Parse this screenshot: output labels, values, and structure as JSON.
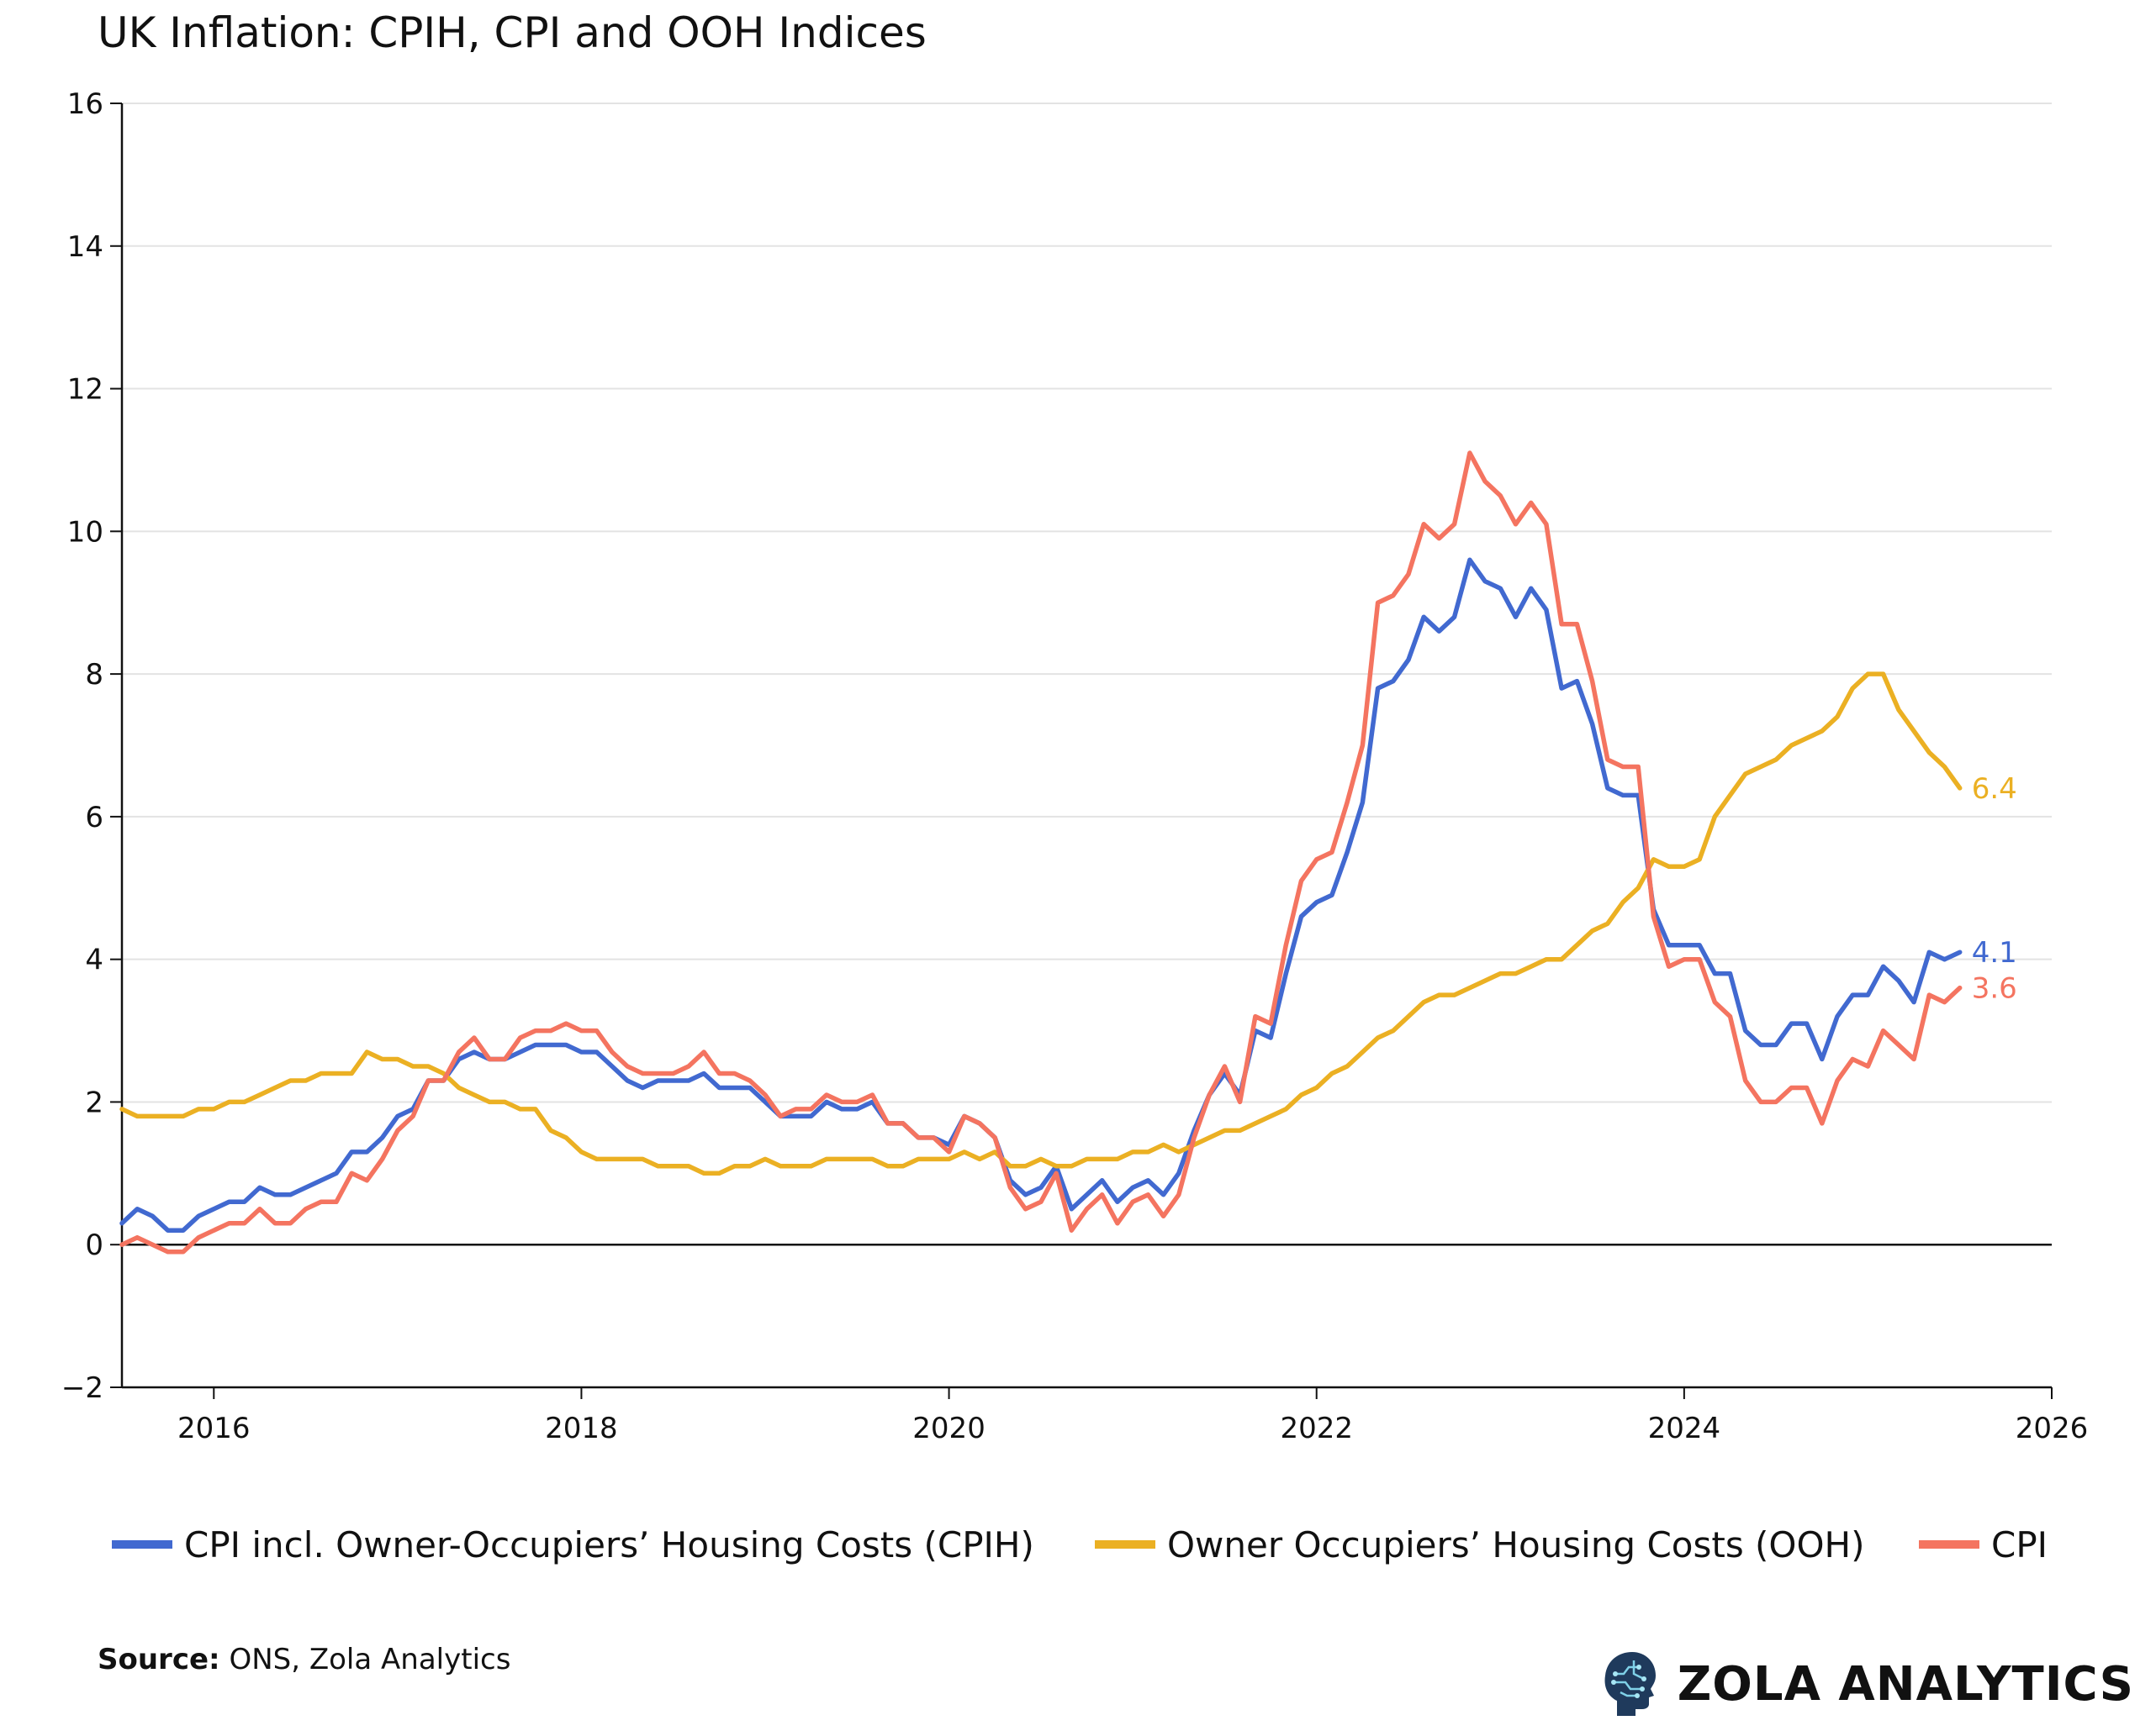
{
  "chart_data": {
    "type": "line",
    "title": "UK Inflation: CPIH, CPI and OOH Indices",
    "xlabel": "",
    "ylabel": "",
    "xlim": [
      2015.5,
      2026
    ],
    "ylim": [
      -2,
      16
    ],
    "x_ticks": [
      "2016",
      "2018",
      "2020",
      "2022",
      "2024",
      "2026"
    ],
    "y_ticks": [
      "−2",
      "0",
      "2",
      "4",
      "6",
      "8",
      "10",
      "12",
      "14",
      "16"
    ],
    "grid": true,
    "x_start": 2015.5,
    "x_step_months": 1,
    "series": [
      {
        "name": "CPI incl. Owner-Occupiers’ Housing Costs (CPIH)",
        "color": "#4169D0",
        "end_label": "4.1",
        "values": [
          0.3,
          0.5,
          0.4,
          0.2,
          0.2,
          0.4,
          0.5,
          0.6,
          0.6,
          0.8,
          0.7,
          0.7,
          0.8,
          0.9,
          1.0,
          1.3,
          1.3,
          1.5,
          1.8,
          1.9,
          2.3,
          2.3,
          2.6,
          2.7,
          2.6,
          2.6,
          2.7,
          2.8,
          2.8,
          2.8,
          2.7,
          2.7,
          2.5,
          2.3,
          2.2,
          2.3,
          2.3,
          2.3,
          2.4,
          2.2,
          2.2,
          2.2,
          2.0,
          1.8,
          1.8,
          1.8,
          2.0,
          1.9,
          1.9,
          2.0,
          1.7,
          1.7,
          1.5,
          1.5,
          1.4,
          1.8,
          1.7,
          1.5,
          0.9,
          0.7,
          0.8,
          1.1,
          0.5,
          0.7,
          0.9,
          0.6,
          0.8,
          0.9,
          0.7,
          1.0,
          1.6,
          2.1,
          2.4,
          2.1,
          3.0,
          2.9,
          3.8,
          4.6,
          4.8,
          4.9,
          5.5,
          6.2,
          7.8,
          7.9,
          8.2,
          8.8,
          8.6,
          8.8,
          9.6,
          9.3,
          9.2,
          8.8,
          9.2,
          8.9,
          7.8,
          7.9,
          7.3,
          6.4,
          6.3,
          6.3,
          4.7,
          4.2,
          4.2,
          4.2,
          3.8,
          3.8,
          3.0,
          2.8,
          2.8,
          3.1,
          3.1,
          2.6,
          3.2,
          3.5,
          3.5,
          3.9,
          3.7,
          3.4,
          4.1,
          4.0,
          4.1
        ]
      },
      {
        "name": "Owner Occupiers’ Housing Costs (OOH)",
        "color": "#EBB023",
        "end_label": "6.4",
        "values": [
          1.9,
          1.8,
          1.8,
          1.8,
          1.8,
          1.9,
          1.9,
          2.0,
          2.0,
          2.1,
          2.2,
          2.3,
          2.3,
          2.4,
          2.4,
          2.4,
          2.7,
          2.6,
          2.6,
          2.5,
          2.5,
          2.4,
          2.2,
          2.1,
          2.0,
          2.0,
          1.9,
          1.9,
          1.6,
          1.5,
          1.3,
          1.2,
          1.2,
          1.2,
          1.2,
          1.1,
          1.1,
          1.1,
          1.0,
          1.0,
          1.1,
          1.1,
          1.2,
          1.1,
          1.1,
          1.1,
          1.2,
          1.2,
          1.2,
          1.2,
          1.1,
          1.1,
          1.2,
          1.2,
          1.2,
          1.3,
          1.2,
          1.3,
          1.1,
          1.1,
          1.2,
          1.1,
          1.1,
          1.2,
          1.2,
          1.2,
          1.3,
          1.3,
          1.4,
          1.3,
          1.4,
          1.5,
          1.6,
          1.6,
          1.7,
          1.8,
          1.9,
          2.1,
          2.2,
          2.4,
          2.5,
          2.7,
          2.9,
          3.0,
          3.2,
          3.4,
          3.5,
          3.5,
          3.6,
          3.7,
          3.8,
          3.8,
          3.9,
          4.0,
          4.0,
          4.2,
          4.4,
          4.5,
          4.8,
          5.0,
          5.4,
          5.3,
          5.3,
          5.4,
          6.0,
          6.3,
          6.6,
          6.7,
          6.8,
          7.0,
          7.1,
          7.2,
          7.4,
          7.8,
          8.0,
          8.0,
          7.5,
          7.2,
          6.9,
          6.7,
          6.4
        ]
      },
      {
        "name": "CPI",
        "color": "#F47460",
        "end_label": "3.6",
        "values": [
          0.0,
          0.1,
          0.0,
          -0.1,
          -0.1,
          0.1,
          0.2,
          0.3,
          0.3,
          0.5,
          0.3,
          0.3,
          0.5,
          0.6,
          0.6,
          1.0,
          0.9,
          1.2,
          1.6,
          1.8,
          2.3,
          2.3,
          2.7,
          2.9,
          2.6,
          2.6,
          2.9,
          3.0,
          3.0,
          3.1,
          3.0,
          3.0,
          2.7,
          2.5,
          2.4,
          2.4,
          2.4,
          2.5,
          2.7,
          2.4,
          2.4,
          2.3,
          2.1,
          1.8,
          1.9,
          1.9,
          2.1,
          2.0,
          2.0,
          2.1,
          1.7,
          1.7,
          1.5,
          1.5,
          1.3,
          1.8,
          1.7,
          1.5,
          0.8,
          0.5,
          0.6,
          1.0,
          0.2,
          0.5,
          0.7,
          0.3,
          0.6,
          0.7,
          0.4,
          0.7,
          1.5,
          2.1,
          2.5,
          2.0,
          3.2,
          3.1,
          4.2,
          5.1,
          5.4,
          5.5,
          6.2,
          7.0,
          9.0,
          9.1,
          9.4,
          10.1,
          9.9,
          10.1,
          11.1,
          10.7,
          10.5,
          10.1,
          10.4,
          10.1,
          8.7,
          8.7,
          7.9,
          6.8,
          6.7,
          6.7,
          4.6,
          3.9,
          4.0,
          4.0,
          3.4,
          3.2,
          2.3,
          2.0,
          2.0,
          2.2,
          2.2,
          1.7,
          2.3,
          2.6,
          2.5,
          3.0,
          2.8,
          2.6,
          3.5,
          3.4,
          3.6
        ]
      }
    ],
    "legend": {
      "position": "bottom",
      "entries": [
        "CPI incl. Owner-Occupiers’ Housing Costs (CPIH)",
        "Owner Occupiers’ Housing Costs (OOH)",
        "CPI"
      ]
    }
  },
  "source": {
    "label": "Source:",
    "text": " ONS, Zola Analytics"
  },
  "brand": {
    "name": "ZOLA ANALYTICS",
    "logo_icon": "brain-head-icon"
  }
}
